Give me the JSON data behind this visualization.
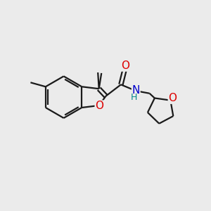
{
  "bg_color": "#ebebeb",
  "bond_color": "#1a1a1a",
  "line_width": 1.6,
  "atom_colors": {
    "O": "#dd0000",
    "N": "#0000cc",
    "H": "#008888",
    "C": "#1a1a1a"
  },
  "font_size": 10,
  "fig_size": [
    3.0,
    3.0
  ],
  "dpi": 100
}
